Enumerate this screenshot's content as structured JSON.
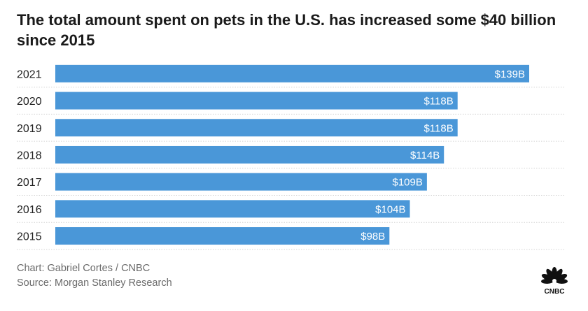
{
  "title": "The total amount spent on pets in the U.S. has increased some $40 billion since 2015",
  "credit_chart": "Chart: Gabriel Cortes / CNBC",
  "credit_source": "Source: Morgan Stanley Research",
  "logo": {
    "name": "cnbc-peacock-logo",
    "text": "CNBC"
  },
  "colors": {
    "bar": "#4a97d8",
    "grid": "#d4d4d4",
    "label_inside": "#ffffff",
    "axis_text": "#222222"
  },
  "chart_data": {
    "type": "bar",
    "orientation": "horizontal",
    "categories": [
      "2021",
      "2020",
      "2019",
      "2018",
      "2017",
      "2016",
      "2015"
    ],
    "values": [
      139,
      118,
      118,
      114,
      109,
      104,
      98
    ],
    "value_labels": [
      "$139B",
      "$118B",
      "$118B",
      "$114B",
      "$109B",
      "$104B",
      "$98B"
    ],
    "xlim": [
      0,
      139
    ],
    "grid": "dotted row separators",
    "legend": "none"
  }
}
